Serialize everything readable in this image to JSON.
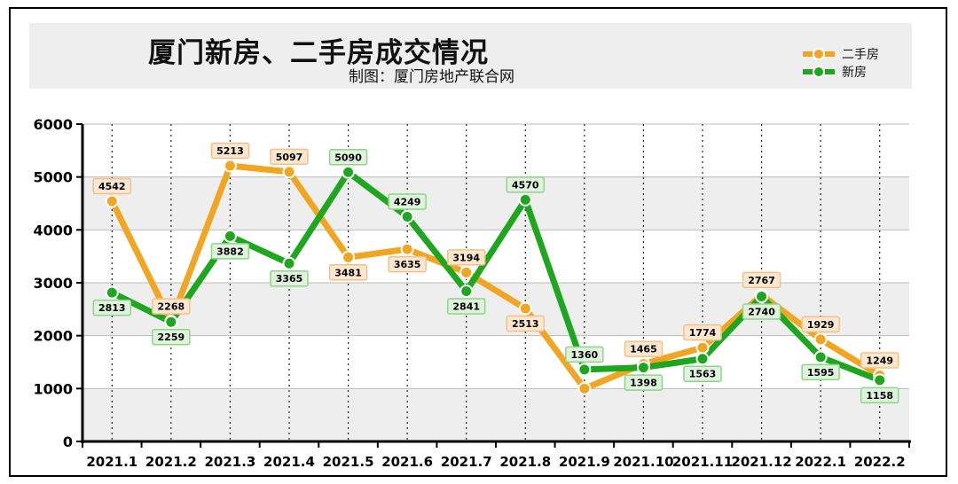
{
  "colors": {
    "series_1": "#f0a623",
    "series_2": "#1ea71e"
  },
  "chart_data": {
    "type": "line",
    "title": "厦门新房、二手房成交情况",
    "subtitle": "制图：厦门房地产联合网",
    "categories": [
      "2021.1",
      "2021.2",
      "2021.3",
      "2021.4",
      "2021.5",
      "2021.6",
      "2021.7",
      "2021.8",
      "2021.9",
      "2021.10",
      "2021.11",
      "2021.12",
      "2022.1",
      "2022.2"
    ],
    "series": [
      {
        "name": "二手房",
        "values": [
          4542,
          2268,
          5213,
          5097,
          3481,
          3635,
          3194,
          2513,
          1000,
          1465,
          1774,
          2767,
          1929,
          1249
        ],
        "labels": [
          "4542",
          "2268",
          "5213",
          "5097",
          "3481",
          "3635",
          "3194",
          "2513",
          "",
          "1465",
          "1774",
          "2767",
          "1929",
          "1249"
        ]
      },
      {
        "name": "新房",
        "values": [
          2813,
          2259,
          3882,
          3365,
          5090,
          4249,
          2841,
          4570,
          1360,
          1398,
          1563,
          2740,
          1595,
          1158
        ],
        "labels": [
          "2813",
          "2259",
          "3882",
          "3365",
          "5090",
          "4249",
          "2841",
          "4570",
          "1360",
          "1398",
          "1563",
          "2740",
          "1595",
          "1158"
        ]
      }
    ],
    "yticks": [
      "0",
      "1000",
      "2000",
      "3000",
      "4000",
      "5000",
      "6000"
    ],
    "ylim": [
      0,
      6000
    ],
    "grid": true,
    "legend_position": "top-right"
  }
}
